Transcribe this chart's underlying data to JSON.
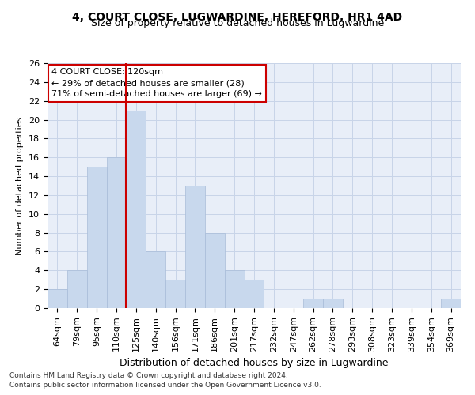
{
  "title": "4, COURT CLOSE, LUGWARDINE, HEREFORD, HR1 4AD",
  "subtitle": "Size of property relative to detached houses in Lugwardine",
  "xlabel": "Distribution of detached houses by size in Lugwardine",
  "ylabel": "Number of detached properties",
  "categories": [
    "64sqm",
    "79sqm",
    "95sqm",
    "110sqm",
    "125sqm",
    "140sqm",
    "156sqm",
    "171sqm",
    "186sqm",
    "201sqm",
    "217sqm",
    "232sqm",
    "247sqm",
    "262sqm",
    "278sqm",
    "293sqm",
    "308sqm",
    "323sqm",
    "339sqm",
    "354sqm",
    "369sqm"
  ],
  "values": [
    2,
    4,
    15,
    16,
    21,
    6,
    3,
    13,
    8,
    4,
    3,
    0,
    0,
    1,
    1,
    0,
    0,
    0,
    0,
    0,
    1
  ],
  "bar_color": "#c8d8ed",
  "bar_edge_color": "#a8bcd8",
  "red_line_color": "#cc0000",
  "red_line_x": 3.5,
  "annotation_text": "4 COURT CLOSE: 120sqm\n← 29% of detached houses are smaller (28)\n71% of semi-detached houses are larger (69) →",
  "annotation_box_facecolor": "#ffffff",
  "annotation_box_edgecolor": "#cc0000",
  "ylim": [
    0,
    26
  ],
  "yticks": [
    0,
    2,
    4,
    6,
    8,
    10,
    12,
    14,
    16,
    18,
    20,
    22,
    24,
    26
  ],
  "grid_color": "#c8d4e8",
  "background_color": "#e8eef8",
  "title_fontsize": 10,
  "subtitle_fontsize": 9,
  "ylabel_fontsize": 8,
  "xlabel_fontsize": 9,
  "tick_fontsize": 8,
  "footer_line1": "Contains HM Land Registry data © Crown copyright and database right 2024.",
  "footer_line2": "Contains public sector information licensed under the Open Government Licence v3.0.",
  "footer_fontsize": 6.5
}
